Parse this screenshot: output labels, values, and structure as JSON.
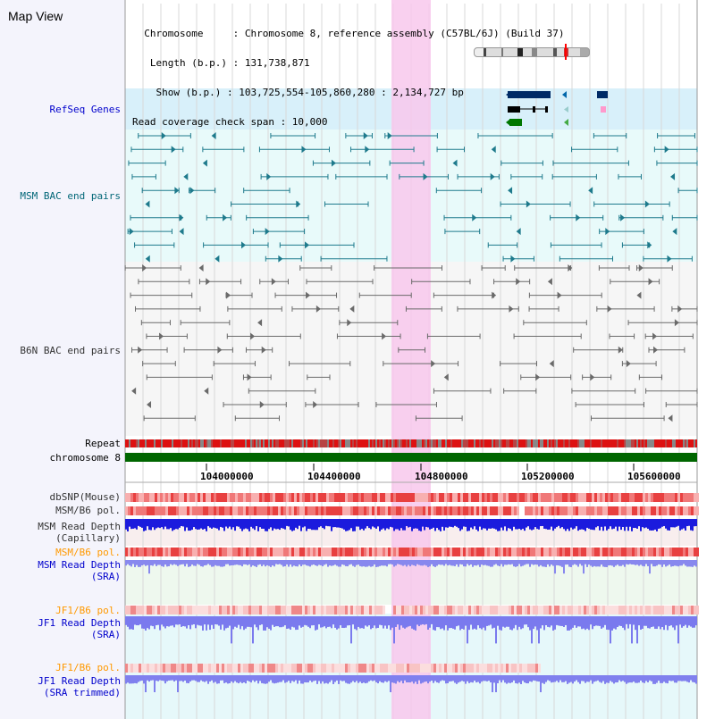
{
  "app": {
    "title": "Map View"
  },
  "info": {
    "chromosome_line": "  Chromosome     : Chromosome 8, reference assembly (C57BL/6J) (Build 37)",
    "length_line": "   Length (b.p.) : 131,738,871",
    "show_line": "    Show (b.p.) : 103,725,554-105,860,280 : 2,134,727 bp",
    "coverage_line": "Read coverage check span : 10,000"
  },
  "tracks": {
    "refseq": "RefSeq Genes",
    "msm_bac": "MSM BAC end pairs",
    "b6n_bac": "B6N BAC end pairs",
    "repeat": "Repeat",
    "chromosome": "chromosome 8",
    "dbsnp": "dbSNP(Mouse)",
    "msm_b6_pol_1": "MSM/B6 pol.",
    "msm_depth_cap_1": "MSM Read Depth",
    "msm_depth_cap_2": "(Capillary)",
    "msm_b6_pol_2": "MSM/B6 pol.",
    "msm_depth_sra_1": "MSM Read Depth",
    "msm_depth_sra_2": "(SRA)",
    "jf1_b6_pol_1": "JF1/B6 pol.",
    "jf1_depth_sra_1": "JF1 Read Depth",
    "jf1_depth_sra_2": "(SRA)",
    "jf1_b6_pol_2": "JF1/B6 pol.",
    "jf1_depth_trim_1": "JF1 Read Depth",
    "jf1_depth_trim_2": "(SRA trimmed)"
  },
  "axis": {
    "ticks": [
      "104000000",
      "104400000",
      "104800000",
      "105200000",
      "105600000"
    ]
  },
  "colors": {
    "label_blue": "#0000cc",
    "label_teal": "#006677",
    "label_orange": "#ff9900",
    "label_gray": "#333333",
    "highlight": "#f8c8ec",
    "refseq_bg": "#d8f0fa",
    "msm_bg": "#e8fafa",
    "b6n_bg": "#f6f6f6",
    "chromosome_bar": "#006600"
  }
}
